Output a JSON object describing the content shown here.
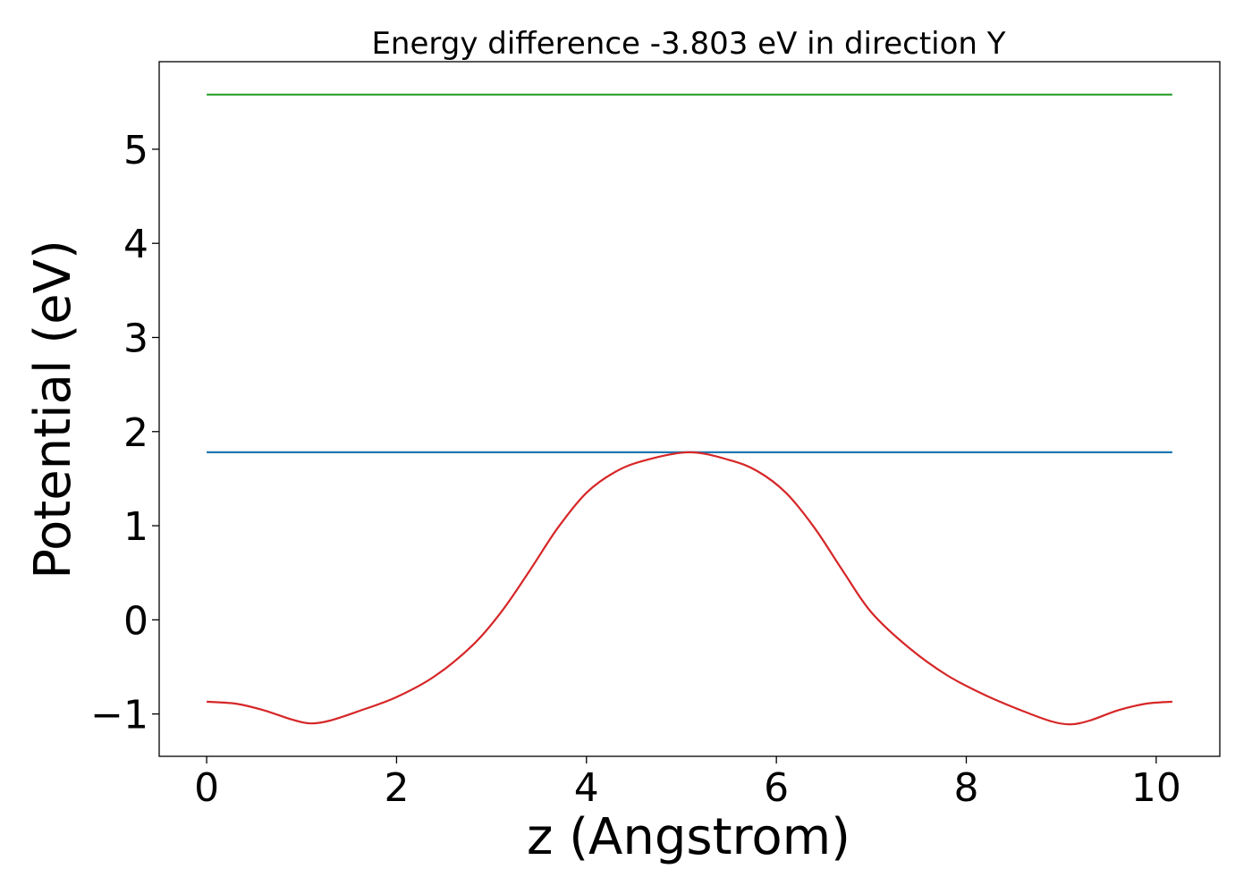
{
  "chart_data": {
    "type": "line",
    "title": "Energy difference -3.803 eV in direction Y",
    "xlabel": "z (Angstrom)",
    "ylabel": "Potential (eV)",
    "xlim": [
      -0.5,
      10.67
    ],
    "ylim": [
      -1.45,
      5.93
    ],
    "xticks": [
      0,
      2,
      4,
      6,
      8,
      10
    ],
    "xtick_labels": [
      "0",
      "2",
      "4",
      "6",
      "8",
      "10"
    ],
    "yticks": [
      -1,
      0,
      1,
      2,
      3,
      4,
      5
    ],
    "ytick_labels": [
      "−1",
      "0",
      "1",
      "2",
      "3",
      "4",
      "5"
    ],
    "grid": false,
    "series": [
      {
        "color": "#2ca02c",
        "x": [
          0,
          10.17
        ],
        "y": [
          5.58,
          5.58
        ]
      },
      {
        "color": "#1f77b4",
        "x": [
          0,
          10.17
        ],
        "y": [
          1.78,
          1.78
        ]
      },
      {
        "color": "#d62728",
        "x": [
          0,
          0.3,
          0.6,
          0.9,
          1.1,
          1.3,
          1.6,
          2.0,
          2.4,
          2.8,
          3.1,
          3.4,
          3.7,
          4.0,
          4.3,
          4.6,
          5.08,
          5.5,
          5.8,
          6.1,
          6.4,
          6.7,
          7.0,
          7.4,
          7.8,
          8.2,
          8.6,
          8.9,
          9.1,
          9.3,
          9.6,
          9.9,
          10.17
        ],
        "y": [
          -0.87,
          -0.89,
          -0.96,
          -1.06,
          -1.1,
          -1.07,
          -0.97,
          -0.82,
          -0.6,
          -0.27,
          0.08,
          0.52,
          0.98,
          1.35,
          1.57,
          1.69,
          1.78,
          1.7,
          1.58,
          1.35,
          0.98,
          0.52,
          0.08,
          -0.3,
          -0.59,
          -0.8,
          -0.97,
          -1.08,
          -1.11,
          -1.07,
          -0.96,
          -0.89,
          -0.87
        ]
      }
    ]
  }
}
